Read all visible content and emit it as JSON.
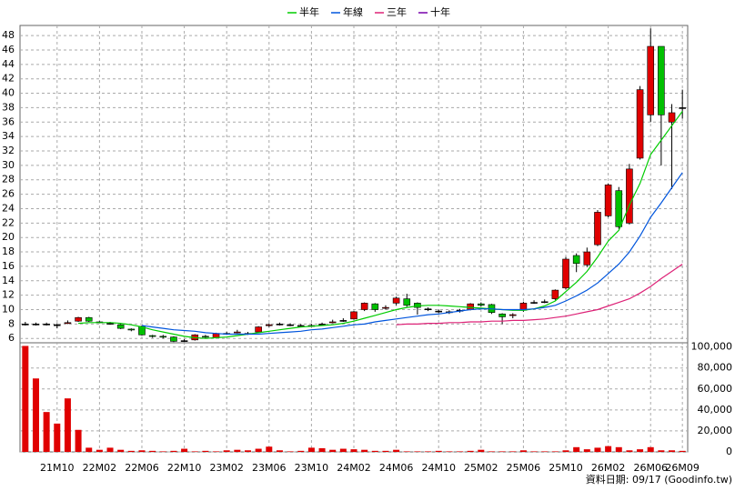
{
  "chart_data": [
    {
      "type": "candlestick",
      "note": "資料日期: 09/17 (Goodinfo.tw)",
      "categories": [
        null,
        null,
        null,
        "21M10",
        null,
        null,
        null,
        "22M02",
        null,
        null,
        null,
        "22M06",
        null,
        null,
        null,
        "22M10",
        null,
        null,
        null,
        "23M02",
        null,
        null,
        null,
        "23M06",
        null,
        null,
        null,
        "23M10",
        null,
        null,
        null,
        "24M02",
        null,
        null,
        null,
        "24M06",
        null,
        null,
        null,
        "24M10",
        null,
        null,
        null,
        "25M02",
        null,
        null,
        null,
        "25M06",
        null,
        null,
        null,
        "25M10",
        null,
        null,
        null,
        "26M02",
        null,
        null,
        null,
        "26M06",
        null,
        null,
        "26M09"
      ],
      "open": [
        8,
        8,
        8,
        7.9,
        8.1,
        8.4,
        8.9,
        8.3,
        8.1,
        7.9,
        7.3,
        7.7,
        6.4,
        6.3,
        6.2,
        5.7,
        5.8,
        6.3,
        6.1,
        6.7,
        6.8,
        6.7,
        6.9,
        7.8,
        8.0,
        7.9,
        7.8,
        7.8,
        8.0,
        8.2,
        8.5,
        8.7,
        10.0,
        10.8,
        10.2,
        10.9,
        11.5,
        10.9,
        10.1,
        9.8,
        9.7,
        9.9,
        10.0,
        10.8,
        10.7,
        9.4,
        9.2,
        9.9,
        11.0,
        11.1,
        11.5,
        13.0,
        17.5,
        16.2,
        19.0,
        23.0,
        26.5,
        22.0,
        31.0,
        37.0,
        46.5,
        36.0,
        38.0
      ],
      "high": [
        8.3,
        8.2,
        8.2,
        8.1,
        8.5,
        9.0,
        9.0,
        8.4,
        8.3,
        8.0,
        7.4,
        7.8,
        6.5,
        6.5,
        6.3,
        5.9,
        6.6,
        6.5,
        6.8,
        6.9,
        7.2,
        6.9,
        7.7,
        8.1,
        8.2,
        8.1,
        8.0,
        8.0,
        8.2,
        8.6,
        8.8,
        9.8,
        11.0,
        10.9,
        10.6,
        11.8,
        12.2,
        11.0,
        10.3,
        10.0,
        9.9,
        10.1,
        10.9,
        11.0,
        10.8,
        9.5,
        9.5,
        11.1,
        11.3,
        11.4,
        12.8,
        17.3,
        17.8,
        18.6,
        23.8,
        27.5,
        27.0,
        30.2,
        41.0,
        49.0,
        46.5,
        38.5,
        40.5
      ],
      "low": [
        7.8,
        7.8,
        7.8,
        7.4,
        8.0,
        8.3,
        8.3,
        8.1,
        7.9,
        7.3,
        7.0,
        6.4,
        6.1,
        6.0,
        5.5,
        5.5,
        5.7,
        6.0,
        6.0,
        6.5,
        6.7,
        6.5,
        6.8,
        7.6,
        7.8,
        7.7,
        7.6,
        7.6,
        7.8,
        8.1,
        8.3,
        8.6,
        9.8,
        9.7,
        10.0,
        10.6,
        10.4,
        9.3,
        9.8,
        9.5,
        9.4,
        9.6,
        9.9,
        10.4,
        9.4,
        8.0,
        8.8,
        9.7,
        10.8,
        10.9,
        11.3,
        12.8,
        15.2,
        15.9,
        18.8,
        22.8,
        21.2,
        21.8,
        30.8,
        36.0,
        30.0,
        26.7,
        36.5
      ],
      "close": [
        8,
        8,
        8,
        7.9,
        8.2,
        8.9,
        8.4,
        8.3,
        8.1,
        7.4,
        7.2,
        6.5,
        6.3,
        6.2,
        5.6,
        5.7,
        6.5,
        6.2,
        6.7,
        6.7,
        6.9,
        6.7,
        7.6,
        7.9,
        8.0,
        7.9,
        7.8,
        7.8,
        8.0,
        8.3,
        8.5,
        9.7,
        10.9,
        10.0,
        10.3,
        11.6,
        10.6,
        10.3,
        10.1,
        9.8,
        9.7,
        9.9,
        10.8,
        10.6,
        9.6,
        9.0,
        9.3,
        10.9,
        11.0,
        11.1,
        12.7,
        17.0,
        16.4,
        18.0,
        23.5,
        27.3,
        21.5,
        29.5,
        40.5,
        46.5,
        37.0,
        37.3,
        38.0
      ],
      "up_color": "#e00000",
      "down_color": "#00c000",
      "doji_color": "#000000",
      "series": [
        {
          "name": "半年",
          "color": "#00cc00",
          "values": [
            null,
            null,
            null,
            null,
            null,
            8.1,
            8.2,
            8.2,
            8.2,
            8.1,
            7.9,
            7.6,
            7.2,
            6.9,
            6.6,
            6.3,
            6.1,
            6.0,
            6.1,
            6.2,
            6.4,
            6.6,
            6.8,
            7.0,
            7.2,
            7.4,
            7.6,
            7.7,
            7.8,
            7.9,
            8.1,
            8.4,
            8.8,
            9.2,
            9.6,
            10.0,
            10.3,
            10.5,
            10.6,
            10.6,
            10.5,
            10.4,
            10.3,
            10.2,
            10.1,
            10.0,
            9.9,
            9.9,
            10.1,
            10.5,
            11.2,
            12.5,
            13.8,
            15.3,
            17.3,
            19.5,
            21.0,
            24.5,
            27.5,
            31.5,
            33.5,
            35.5,
            37.5
          ]
        },
        {
          "name": "年線",
          "color": "#0055dd",
          "values": [
            null,
            null,
            null,
            null,
            null,
            null,
            null,
            null,
            null,
            null,
            null,
            7.8,
            7.6,
            7.4,
            7.2,
            7.1,
            7.0,
            6.8,
            6.7,
            6.6,
            6.6,
            6.6,
            6.6,
            6.7,
            6.8,
            6.9,
            7.0,
            7.2,
            7.3,
            7.5,
            7.7,
            7.9,
            8.0,
            8.3,
            8.5,
            8.7,
            8.9,
            9.1,
            9.3,
            9.4,
            9.6,
            9.8,
            10.0,
            10.1,
            10.1,
            10.0,
            10.0,
            10.0,
            10.1,
            10.3,
            10.6,
            11.2,
            11.9,
            12.7,
            13.7,
            15.0,
            16.3,
            18.0,
            20.2,
            22.8,
            24.8,
            26.9,
            29.0
          ]
        },
        {
          "name": "三年",
          "color": "#dd2277",
          "values": [
            null,
            null,
            null,
            null,
            null,
            null,
            null,
            null,
            null,
            null,
            null,
            null,
            null,
            null,
            null,
            null,
            null,
            null,
            null,
            null,
            null,
            null,
            null,
            null,
            null,
            null,
            null,
            null,
            null,
            null,
            null,
            null,
            null,
            null,
            null,
            7.9,
            8.0,
            8.0,
            8.1,
            8.1,
            8.2,
            8.2,
            8.3,
            8.3,
            8.4,
            8.4,
            8.5,
            8.5,
            8.6,
            8.7,
            8.9,
            9.1,
            9.4,
            9.7,
            10.0,
            10.5,
            11.0,
            11.5,
            12.3,
            13.2,
            14.3,
            15.3,
            16.3
          ]
        },
        {
          "name": "十年",
          "color": "#7700aa",
          "values": [
            null,
            null,
            null,
            null,
            null,
            null,
            null,
            null,
            null,
            null,
            null,
            null,
            null,
            null,
            null,
            null,
            null,
            null,
            null,
            null,
            null,
            null,
            null,
            null,
            null,
            null,
            null,
            null,
            null,
            null,
            null,
            null,
            null,
            null,
            null,
            null,
            null,
            null,
            null,
            null,
            null,
            null,
            null,
            null,
            null,
            null,
            null,
            null,
            null,
            null,
            null,
            null,
            null,
            null,
            null,
            null,
            null,
            null,
            null,
            null,
            null,
            null,
            null
          ]
        }
      ],
      "ylim": [
        5.4,
        49.4
      ],
      "yticks": [
        6,
        8,
        10,
        12,
        14,
        16,
        18,
        20,
        22,
        24,
        26,
        28,
        30,
        32,
        34,
        36,
        38,
        40,
        42,
        44,
        46,
        48
      ],
      "grid": true
    },
    {
      "type": "bar",
      "color": "#e00000",
      "values": [
        101000,
        70000,
        38000,
        27000,
        51000,
        21000,
        4000,
        2000,
        4000,
        2000,
        1000,
        1500,
        1000,
        500,
        1000,
        3000,
        500,
        1000,
        500,
        1500,
        2000,
        1500,
        3000,
        5000,
        1500,
        500,
        1000,
        4000,
        3500,
        2000,
        3000,
        2500,
        2000,
        1000,
        1000,
        2000,
        500,
        500,
        500,
        1000,
        500,
        500,
        1000,
        2000,
        500,
        500,
        500,
        1500,
        500,
        500,
        500,
        1500,
        4500,
        2500,
        4000,
        5500,
        4500,
        1500,
        2500,
        4500,
        1500,
        1500,
        1000
      ],
      "ylim": [
        0,
        104000
      ],
      "yticks": [
        0,
        {
          "value": 20000,
          "label": "20,000"
        },
        {
          "value": 40000,
          "label": "40,000"
        },
        {
          "value": 60000,
          "label": "60,000"
        },
        {
          "value": 80000,
          "label": "80,000"
        },
        {
          "value": 100000,
          "label": "100,000"
        }
      ],
      "grid": true
    }
  ]
}
